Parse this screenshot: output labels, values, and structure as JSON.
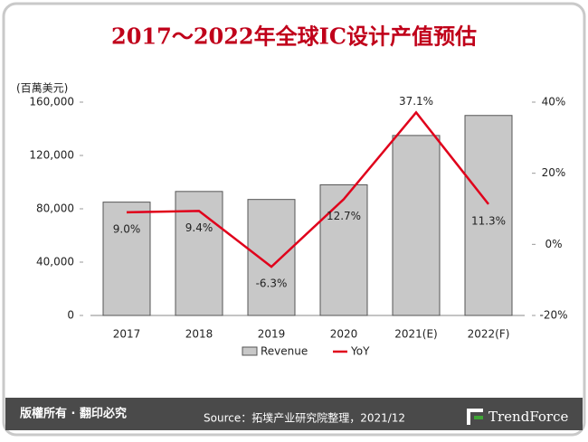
{
  "chart_data": {
    "type": "bar",
    "title": "2017～2022年全球IC设计产值预估",
    "y_axis_label": "(百萬美元)",
    "categories": [
      "2017",
      "2018",
      "2019",
      "2020",
      "2021(E)",
      "2022(F)"
    ],
    "series": [
      {
        "name": "Revenue",
        "type": "bar",
        "color": "#c8c8c8",
        "values": [
          85000,
          93000,
          87000,
          98000,
          135000,
          150000
        ]
      },
      {
        "name": "YoY",
        "type": "line",
        "axis": "y2",
        "color": "#e0001b",
        "values": [
          9.0,
          9.4,
          -6.3,
          12.7,
          37.1,
          11.3
        ],
        "value_labels": [
          "9.0%",
          "9.4%",
          "-6.3%",
          "12.7%",
          "37.1%",
          "11.3%"
        ]
      }
    ],
    "ylim": [
      0,
      160000
    ],
    "yticks": [
      0,
      {
        "value": 40000,
        "label": "40,000"
      },
      {
        "value": 80000,
        "label": "80,000"
      },
      {
        "value": 120000,
        "label": "120,000"
      },
      {
        "value": 160000,
        "label": "160,000"
      }
    ],
    "y2lim": [
      -20,
      40
    ],
    "y2ticks": [
      {
        "value": -20,
        "label": "-20%"
      },
      {
        "value": 0,
        "label": "0%"
      },
      {
        "value": 20,
        "label": "20%"
      },
      {
        "value": 40,
        "label": "40%"
      }
    ],
    "grid": false
  },
  "footer": {
    "copyright": "版權所有 · 翻印必究",
    "source": "Source：拓墣产业研究院整理，2021/12",
    "logo": "TrendForce"
  }
}
